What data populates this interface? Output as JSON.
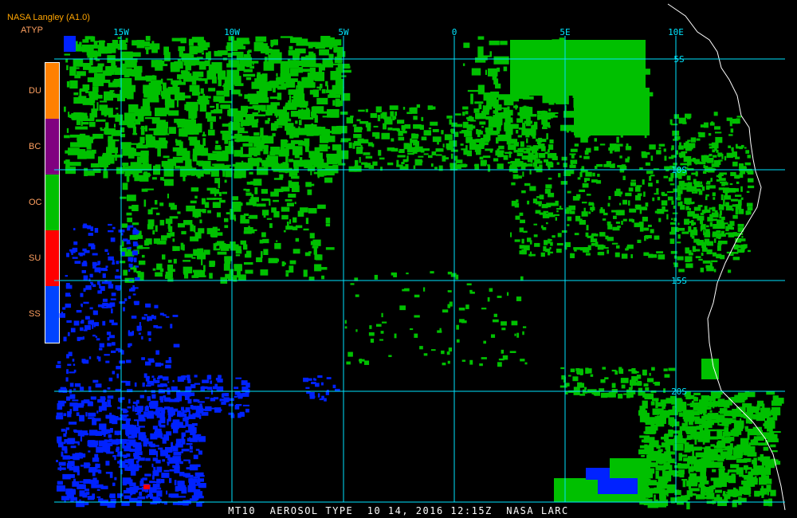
{
  "header": {
    "title": "NASA Langley (A1.0)",
    "product": "ATYP"
  },
  "legend": {
    "items": [
      {
        "code": "DU",
        "color": "#ff8000"
      },
      {
        "code": "BC",
        "color": "#800080"
      },
      {
        "code": "OC",
        "color": "#00c000"
      },
      {
        "code": "SU",
        "color": "#ff0000"
      },
      {
        "code": "SS",
        "color": "#0044ff"
      }
    ]
  },
  "map": {
    "longitude_labels": [
      "15W",
      "10W",
      "5W",
      "0",
      "5E",
      "10E"
    ],
    "latitude_labels": [
      "5S",
      "10S",
      "15S",
      "20S"
    ],
    "grid_color": "#00e5ff",
    "coastline_color": "#ffffff"
  },
  "footer": {
    "caption": "MT10  AEROSOL TYPE  10 14, 2016 12:15Z  NASA LARC"
  }
}
